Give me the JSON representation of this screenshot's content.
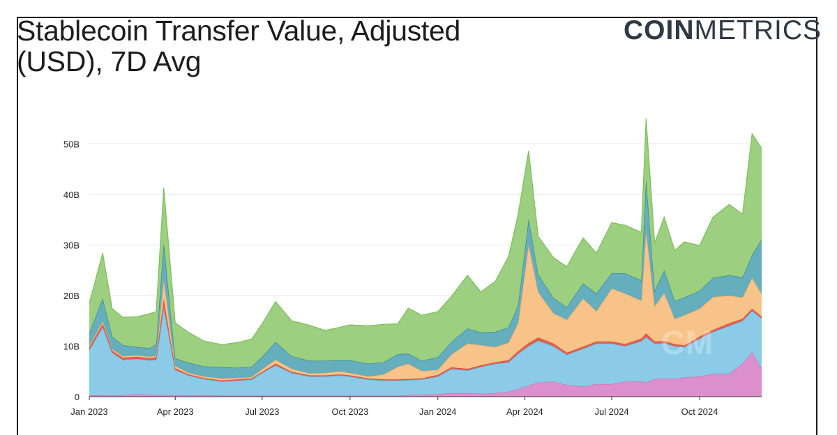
{
  "header": {
    "title": "Stablecoin Transfer Value, Adjusted (USD), 7D Avg",
    "logo_bold": "COIN",
    "logo_light": "METRICS"
  },
  "chart_data": {
    "type": "area",
    "stacked": true,
    "title": "Stablecoin Transfer Value, Adjusted (USD), 7D Avg",
    "xlabel": "",
    "ylabel": "",
    "ylim": [
      0,
      55
    ],
    "y_unit": "B USD",
    "y_ticks": [
      {
        "value": 0,
        "label": "0"
      },
      {
        "value": 10,
        "label": "10B"
      },
      {
        "value": 20,
        "label": "20B"
      },
      {
        "value": 30,
        "label": "30B"
      },
      {
        "value": 40,
        "label": "40B"
      },
      {
        "value": 50,
        "label": "50B"
      }
    ],
    "x_range": [
      "2023-01-01",
      "2024-12-05"
    ],
    "x_ticks": [
      {
        "date": "2023-01-01",
        "label": "Jan 2023"
      },
      {
        "date": "2023-04-01",
        "label": "Apr 2023"
      },
      {
        "date": "2023-07-01",
        "label": "Jul 2023"
      },
      {
        "date": "2023-10-01",
        "label": "Oct 2023"
      },
      {
        "date": "2024-01-01",
        "label": "Jan 2024"
      },
      {
        "date": "2024-04-01",
        "label": "Apr 2024"
      },
      {
        "date": "2024-07-01",
        "label": "Jul 2024"
      },
      {
        "date": "2024-10-01",
        "label": "Oct 2024"
      }
    ],
    "grid": true,
    "watermark": "CM",
    "x": [
      "2023-01-01",
      "2023-01-15",
      "2023-01-25",
      "2023-02-05",
      "2023-02-20",
      "2023-03-05",
      "2023-03-12",
      "2023-03-20",
      "2023-04-01",
      "2023-04-15",
      "2023-05-01",
      "2023-05-20",
      "2023-06-05",
      "2023-06-20",
      "2023-07-01",
      "2023-07-15",
      "2023-08-01",
      "2023-08-20",
      "2023-09-05",
      "2023-09-20",
      "2023-10-01",
      "2023-10-20",
      "2023-11-05",
      "2023-11-20",
      "2023-12-01",
      "2023-12-15",
      "2024-01-01",
      "2024-01-15",
      "2024-02-01",
      "2024-02-15",
      "2024-03-01",
      "2024-03-15",
      "2024-03-25",
      "2024-04-05",
      "2024-04-15",
      "2024-05-01",
      "2024-05-15",
      "2024-06-01",
      "2024-06-15",
      "2024-07-01",
      "2024-07-15",
      "2024-08-01",
      "2024-08-06",
      "2024-08-15",
      "2024-08-25",
      "2024-09-05",
      "2024-09-15",
      "2024-10-01",
      "2024-10-15",
      "2024-11-01",
      "2024-11-15",
      "2024-11-25",
      "2024-12-05"
    ],
    "series": [
      {
        "name": "Pink",
        "color": "#dc8fcc",
        "values": [
          0.2,
          0.3,
          0.2,
          0.3,
          0.5,
          0.4,
          0.3,
          0.3,
          0.3,
          0.2,
          0.3,
          0.2,
          0.2,
          0.2,
          0.2,
          0.2,
          0.2,
          0.2,
          0.2,
          0.2,
          0.2,
          0.2,
          0.2,
          0.2,
          0.3,
          0.4,
          0.5,
          0.7,
          0.7,
          0.6,
          0.7,
          1.0,
          1.5,
          2.2,
          2.8,
          3.0,
          2.3,
          2.0,
          2.5,
          2.5,
          3.0,
          3.0,
          2.8,
          3.5,
          3.6,
          3.5,
          3.8,
          4.0,
          4.5,
          4.5,
          6.5,
          8.8,
          5.5
        ]
      },
      {
        "name": "Light Blue",
        "color": "#8bcbe7",
        "values": [
          9.0,
          13.5,
          8.5,
          7.0,
          7.0,
          6.8,
          7.0,
          17.5,
          5.0,
          4.0,
          3.2,
          2.8,
          3.0,
          3.2,
          4.5,
          6.0,
          4.5,
          3.8,
          3.8,
          4.0,
          3.8,
          3.2,
          3.0,
          3.0,
          3.0,
          3.0,
          3.5,
          4.8,
          4.5,
          5.3,
          5.8,
          5.8,
          7.0,
          7.8,
          8.3,
          7.0,
          6.0,
          7.5,
          8.0,
          8.0,
          7.0,
          8.0,
          9.0,
          7.0,
          7.0,
          6.5,
          6.0,
          7.5,
          8.3,
          9.5,
          8.5,
          8.2,
          10.0
        ]
      },
      {
        "name": "Red",
        "color": "#e85d4c",
        "values": [
          0.5,
          0.6,
          0.4,
          0.4,
          0.4,
          0.4,
          0.5,
          1.5,
          0.3,
          0.2,
          0.2,
          0.2,
          0.2,
          0.2,
          0.2,
          0.3,
          0.2,
          0.2,
          0.2,
          0.2,
          0.2,
          0.2,
          0.2,
          0.2,
          0.2,
          0.2,
          0.3,
          0.3,
          0.3,
          0.3,
          0.3,
          0.4,
          0.5,
          0.6,
          0.6,
          0.5,
          0.4,
          0.4,
          0.4,
          0.4,
          0.4,
          0.5,
          0.7,
          0.4,
          0.4,
          0.4,
          0.3,
          0.4,
          0.4,
          0.5,
          0.4,
          0.4,
          0.3
        ]
      },
      {
        "name": "Orange",
        "color": "#f7c388",
        "values": [
          0.3,
          0.5,
          0.3,
          0.3,
          0.3,
          0.3,
          0.3,
          4.0,
          0.5,
          0.3,
          0.3,
          0.4,
          0.3,
          0.3,
          0.5,
          0.8,
          0.6,
          0.4,
          0.5,
          0.6,
          0.5,
          0.4,
          1.0,
          2.5,
          3.0,
          1.5,
          1.0,
          2.5,
          5.0,
          4.0,
          3.0,
          3.5,
          5.5,
          19.5,
          9.0,
          6.0,
          6.5,
          9.5,
          6.0,
          10.5,
          10.0,
          7.5,
          20.5,
          7.0,
          9.5,
          5.0,
          6.0,
          5.5,
          6.5,
          5.5,
          4.2,
          6.1,
          4.5
        ]
      },
      {
        "name": "Teal",
        "color": "#64aebd",
        "values": [
          2.5,
          4.5,
          2.5,
          2.2,
          1.6,
          1.7,
          2.2,
          7.0,
          1.5,
          2.0,
          2.0,
          2.2,
          2.0,
          2.0,
          2.5,
          3.5,
          2.5,
          2.5,
          2.4,
          2.2,
          2.5,
          2.5,
          2.4,
          2.5,
          2.0,
          2.0,
          2.5,
          2.5,
          3.0,
          2.5,
          3.0,
          3.0,
          3.5,
          5.0,
          3.5,
          3.0,
          2.5,
          3.0,
          3.5,
          3.0,
          4.0,
          4.0,
          10.0,
          3.0,
          4.5,
          3.5,
          3.5,
          3.5,
          3.8,
          4.0,
          4.0,
          4.5,
          10.8
        ]
      },
      {
        "name": "Green",
        "color": "#9ccf7f",
        "values": [
          6.0,
          9.0,
          5.5,
          5.5,
          6.0,
          6.8,
          6.5,
          11.0,
          7.0,
          6.0,
          5.0,
          4.5,
          5.0,
          5.5,
          6.5,
          8.0,
          7.0,
          7.0,
          6.0,
          6.5,
          7.0,
          7.5,
          7.5,
          6.0,
          9.0,
          9.0,
          9.0,
          9.0,
          10.5,
          8.0,
          10.0,
          14.0,
          18.0,
          13.5,
          7.5,
          8.0,
          8.0,
          9.0,
          8.0,
          10.0,
          9.5,
          9.5,
          12.0,
          9.5,
          10.5,
          10.0,
          11.0,
          9.0,
          12.0,
          14.0,
          12.5,
          24.0,
          18.0
        ]
      }
    ]
  }
}
